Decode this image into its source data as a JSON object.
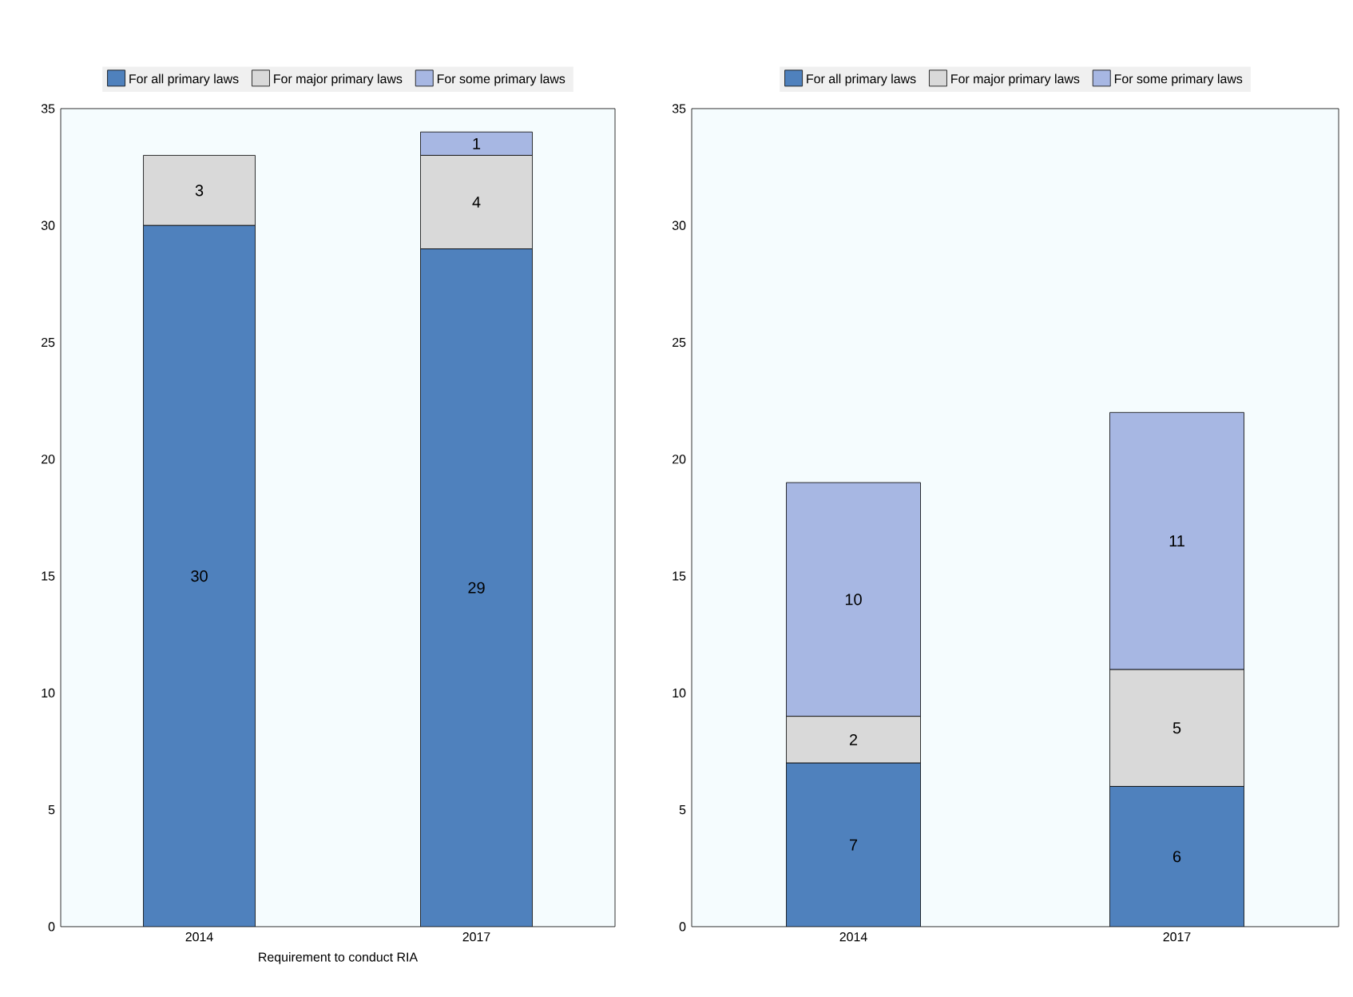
{
  "chart_data": [
    {
      "type": "bar",
      "stacked": true,
      "categories": [
        "2014",
        "2017"
      ],
      "xlabel": "Requirement to conduct RIA",
      "ylim": [
        0,
        35
      ],
      "yticks": [
        0,
        5,
        10,
        15,
        20,
        25,
        30,
        35
      ],
      "legend": "top",
      "data_labels": true,
      "series": [
        {
          "name": "For all primary laws",
          "color": "#4f81bd",
          "values": [
            30,
            29
          ]
        },
        {
          "name": "For major primary laws",
          "color": "#d9d9d9",
          "values": [
            3,
            4
          ]
        },
        {
          "name": "For some primary laws",
          "color": "#a7b7e3",
          "values": [
            null,
            1
          ]
        }
      ]
    },
    {
      "type": "bar",
      "stacked": true,
      "categories": [
        "2014",
        "2017"
      ],
      "ylim": [
        0,
        35
      ],
      "yticks": [
        0,
        5,
        10,
        15,
        20,
        25,
        30,
        35
      ],
      "legend": "top",
      "data_labels": true,
      "series": [
        {
          "name": "For all primary laws",
          "color": "#4f81bd",
          "values": [
            7,
            6
          ]
        },
        {
          "name": "For major primary laws",
          "color": "#d9d9d9",
          "values": [
            2,
            5
          ]
        },
        {
          "name": "For some primary laws",
          "color": "#a7b7e3",
          "values": [
            10,
            11
          ]
        }
      ]
    }
  ]
}
